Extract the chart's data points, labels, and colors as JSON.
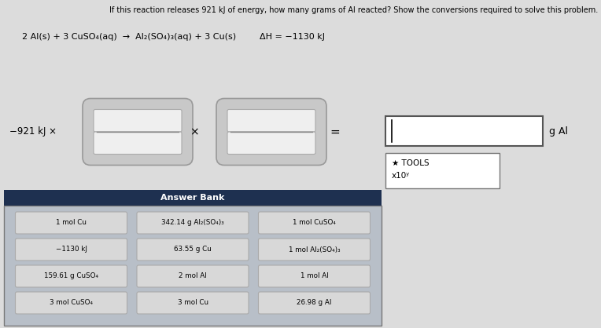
{
  "title": "If this reaction releases 921 kJ of energy, how many grams of Al reacted? Show the conversions required to solve this problem.",
  "equation_left": "2 Al(s) + 3 CuSO",
  "equation_mid": "(aq) → Al",
  "equation_right": "(SO",
  "equation_end": ")",
  "equation_full": "2 Al(s) + 3 CuSO₄(aq)  →  Al₂(SO₄)₃(aq) + 3 Cu(s)",
  "delta_h": "ΔH = −1130 kJ",
  "prefix": "−921 kJ ×",
  "times_sign": "×",
  "equals_sign": "=",
  "g_al_label": "g Al",
  "tools_label": "★ TOOLS",
  "x10_label": "x10ʸ",
  "answer_bank_title": "Answer Bank",
  "answer_bank_items": [
    [
      "1 mol Cu",
      "342.14 g Al₂(SO₄)₃",
      "1 mol CuSO₄"
    ],
    [
      "−1130 kJ",
      "63.55 g Cu",
      "1 mol Al₂(SO₄)₃"
    ],
    [
      "159.61 g CuSO₄",
      "2 mol Al",
      "1 mol Al"
    ],
    [
      "3 mol CuSO₄",
      "3 mol Cu",
      "26.98 g Al"
    ]
  ],
  "bg_color": "#dcdcdc",
  "answer_bank_header_color": "#1e3050",
  "answer_bank_bg": "#b8bfc8",
  "result_box_color": "#ffffff",
  "item_box_color": "#d8d8d8",
  "item_box_border": "#aaaaaa",
  "frac_outer_color": "#c8c8c8",
  "frac_inner_color": "#efefef",
  "frac_border": "#888888"
}
